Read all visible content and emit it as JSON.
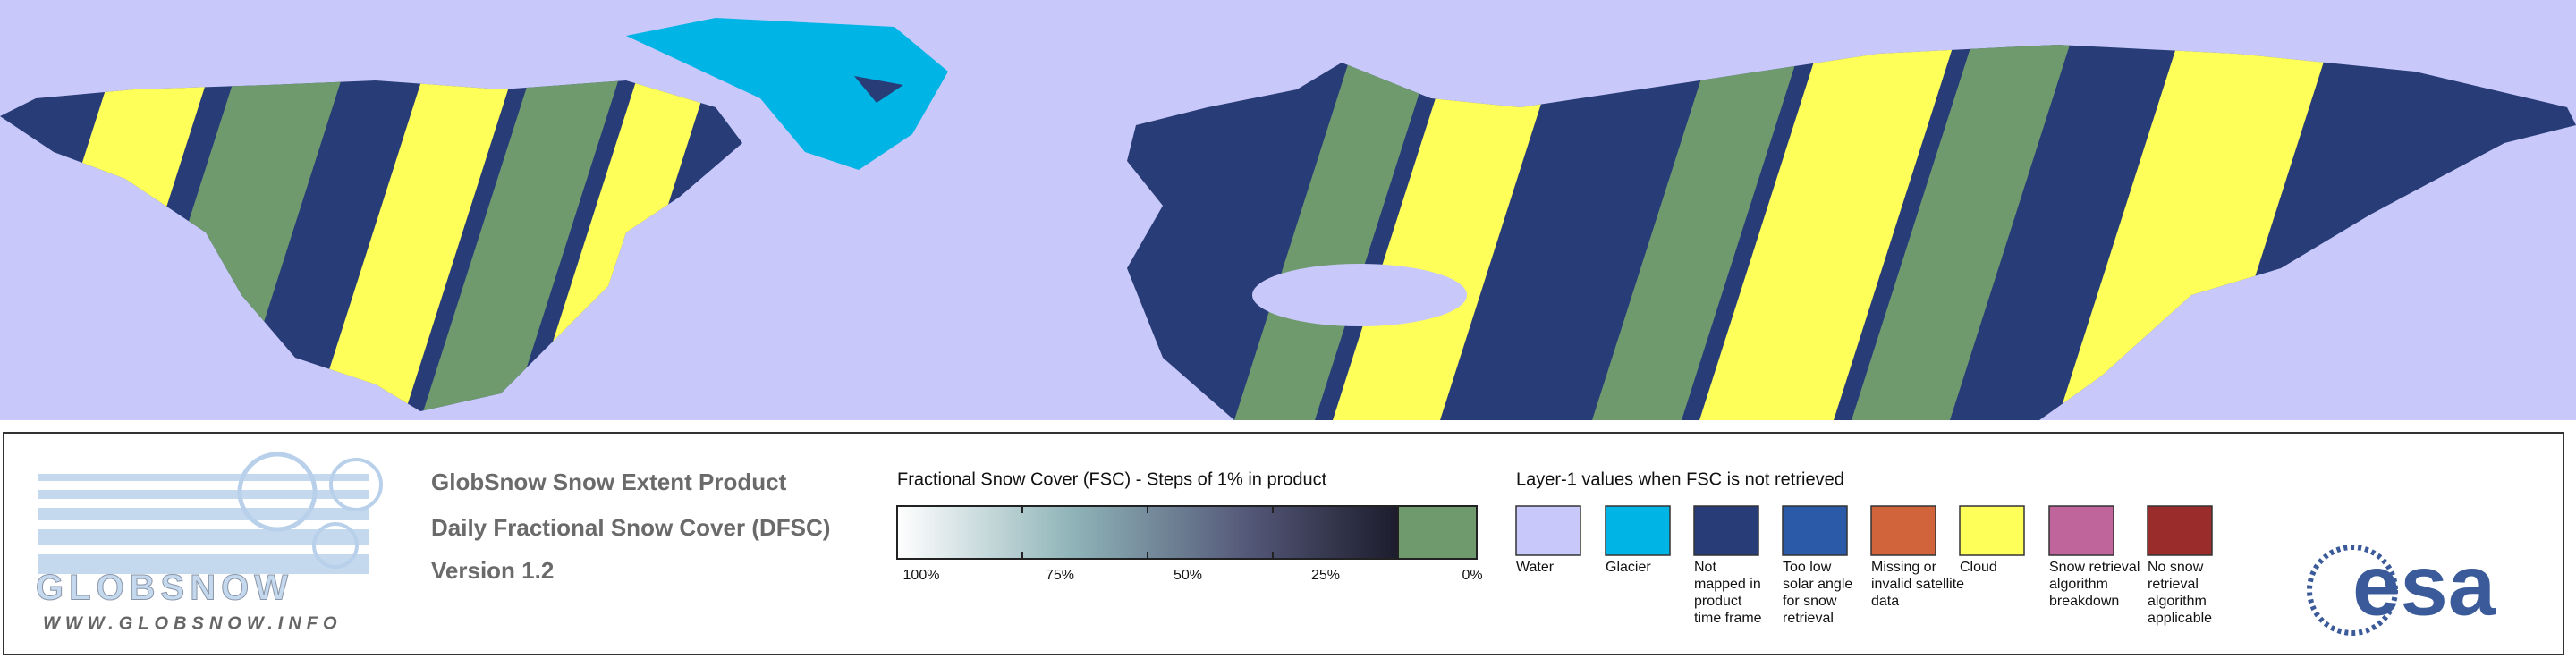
{
  "logos": {
    "globsnow": "GLOBSNOW",
    "url": "WWW.GLOBSNOW.INFO",
    "esa": "esa"
  },
  "product": {
    "lines": [
      "GlobSnow Snow Extent Product",
      "Daily Fractional Snow Cover (DFSC)",
      "Version 1.2"
    ]
  },
  "fsc_legend": {
    "title": "Fractional Snow Cover (FSC) - Steps of 1% in product",
    "ticks": [
      "100%",
      "75%",
      "50%",
      "25%",
      "0%"
    ]
  },
  "layer1_legend": {
    "title": "Layer-1 values when FSC is not retrieved",
    "items": [
      {
        "color": "#c8c8fa",
        "label_lines": [
          "Water"
        ]
      },
      {
        "color": "#00b4e6",
        "label_lines": [
          "Glacier"
        ]
      },
      {
        "color": "#283c78",
        "label_lines": [
          "Not",
          "mapped in",
          "product",
          "time frame"
        ]
      },
      {
        "color": "#2a5aa8",
        "label_lines": [
          "Too low",
          "solar angle",
          "for snow",
          "retrieval"
        ]
      },
      {
        "color": "#d2643c",
        "label_lines": [
          "Missing or",
          "invalid satellite",
          "data"
        ]
      },
      {
        "color": "#ffff5a",
        "label_lines": [
          "Cloud"
        ]
      },
      {
        "color": "#c0649c",
        "label_lines": [
          "Snow retrieval",
          "algorithm",
          "breakdown"
        ]
      },
      {
        "color": "#9a2c2c",
        "label_lines": [
          "No snow",
          "retrieval",
          "algorithm",
          "applicable"
        ]
      }
    ]
  }
}
